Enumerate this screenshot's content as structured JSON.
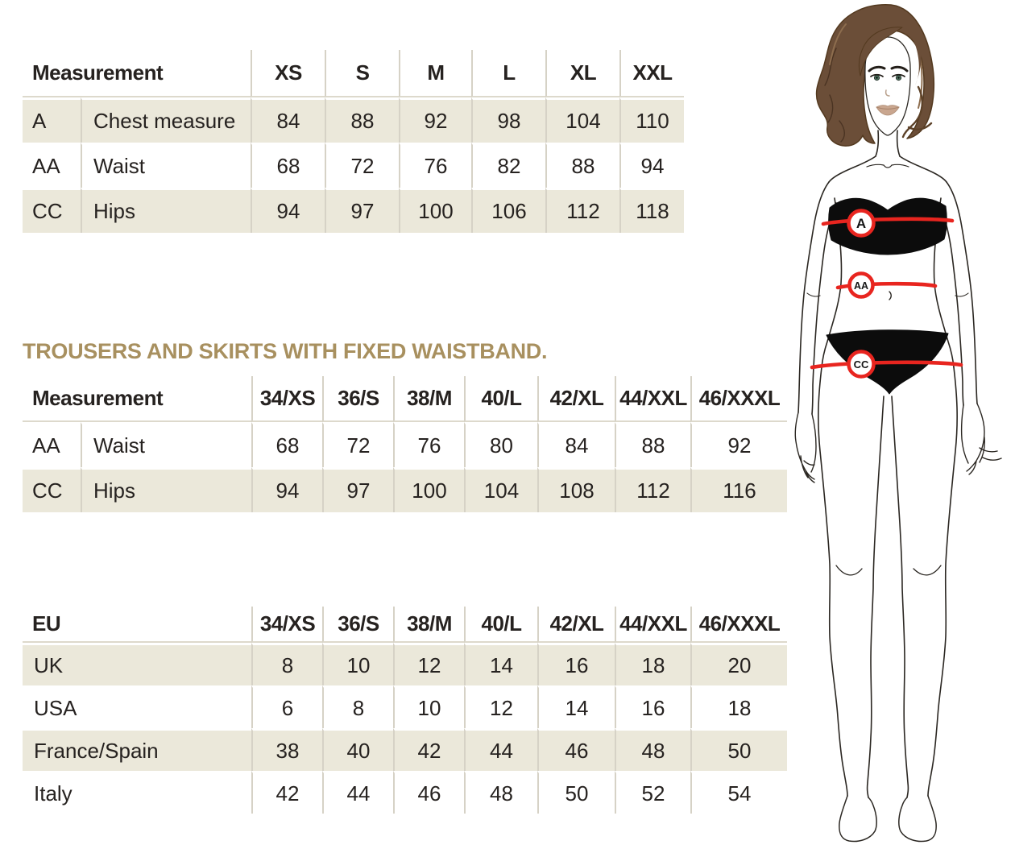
{
  "page": {
    "background": "#ffffff"
  },
  "palette": {
    "shaded_row": "#ebe8da",
    "divider": "#d6d2c6",
    "heading_gold": "#a8905f",
    "accent_red": "#e8251f",
    "text": "#262220",
    "hair_brown": "#6b4e38"
  },
  "section_heading": "TROUSERS AND SKIRTS WITH FIXED WAISTBAND.",
  "tables": {
    "sizes_top": {
      "header": [
        "Measurement",
        "XS",
        "S",
        "M",
        "L",
        "XL",
        "XXL"
      ],
      "rows": [
        {
          "code": "A",
          "label": "Chest measure",
          "values": [
            "84",
            "88",
            "92",
            "98",
            "104",
            "110"
          ],
          "shaded": true
        },
        {
          "code": "AA",
          "label": "Waist",
          "values": [
            "68",
            "72",
            "76",
            "82",
            "88",
            "94"
          ],
          "shaded": false
        },
        {
          "code": "CC",
          "label": "Hips",
          "values": [
            "94",
            "97",
            "100",
            "106",
            "112",
            "118"
          ],
          "shaded": true
        }
      ]
    },
    "fixed_waistband": {
      "header": [
        "Measurement",
        "34/XS",
        "36/S",
        "38/M",
        "40/L",
        "42/XL",
        "44/XXL",
        "46/XXXL"
      ],
      "rows": [
        {
          "code": "AA",
          "label": "Waist",
          "values": [
            "68",
            "72",
            "76",
            "80",
            "84",
            "88",
            "92"
          ],
          "shaded": false
        },
        {
          "code": "CC",
          "label": "Hips",
          "values": [
            "94",
            "97",
            "100",
            "104",
            "108",
            "112",
            "116"
          ],
          "shaded": true
        }
      ]
    },
    "conversion": {
      "header": [
        "EU",
        "34/XS",
        "36/S",
        "38/M",
        "40/L",
        "42/XL",
        "44/XXL",
        "46/XXXL"
      ],
      "rows": [
        {
          "label": "UK",
          "values": [
            "8",
            "10",
            "12",
            "14",
            "16",
            "18",
            "20"
          ],
          "shaded": true
        },
        {
          "label": "USA",
          "values": [
            "6",
            "8",
            "10",
            "12",
            "14",
            "16",
            "18"
          ],
          "shaded": false
        },
        {
          "label": "France/Spain",
          "values": [
            "38",
            "40",
            "42",
            "44",
            "46",
            "48",
            "50"
          ],
          "shaded": true
        },
        {
          "label": "Italy",
          "values": [
            "42",
            "44",
            "46",
            "48",
            "50",
            "52",
            "54"
          ],
          "shaded": false
        }
      ]
    }
  },
  "figure": {
    "badges": [
      {
        "id": "chest",
        "label": "A"
      },
      {
        "id": "waist",
        "label": "AA"
      },
      {
        "id": "hips",
        "label": "CC"
      }
    ]
  }
}
